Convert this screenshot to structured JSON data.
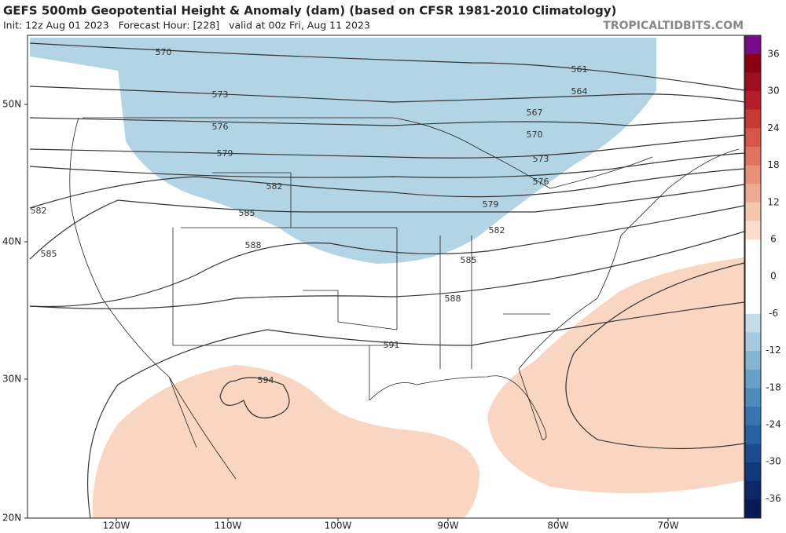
{
  "header": {
    "title": "GEFS 500mb Geopotential Height & Anomaly (dam) (based on CFSR 1981-2010 Climatology)",
    "subtitle": "Init: 12z Aug 01 2023   Forecast Hour: [228]   valid at 00z Fri, Aug 11 2023",
    "source": "TROPICALTIDBITS.COM"
  },
  "map": {
    "lat_labels": [
      "50N",
      "40N",
      "30N",
      "20N"
    ],
    "lon_labels": [
      "120W",
      "110W",
      "100W",
      "90W",
      "80W",
      "70W"
    ],
    "contour_labels": [
      "570",
      "573",
      "576",
      "579",
      "582",
      "585",
      "588",
      "561",
      "564",
      "567",
      "570",
      "573",
      "576",
      "579",
      "582",
      "585",
      "588",
      "591",
      "594",
      "582",
      "585"
    ]
  },
  "colorbar": {
    "labels": [
      "36",
      "30",
      "24",
      "18",
      "12",
      "6",
      "0",
      "-6",
      "-12",
      "-18",
      "-24",
      "-30",
      "-36"
    ]
  }
}
